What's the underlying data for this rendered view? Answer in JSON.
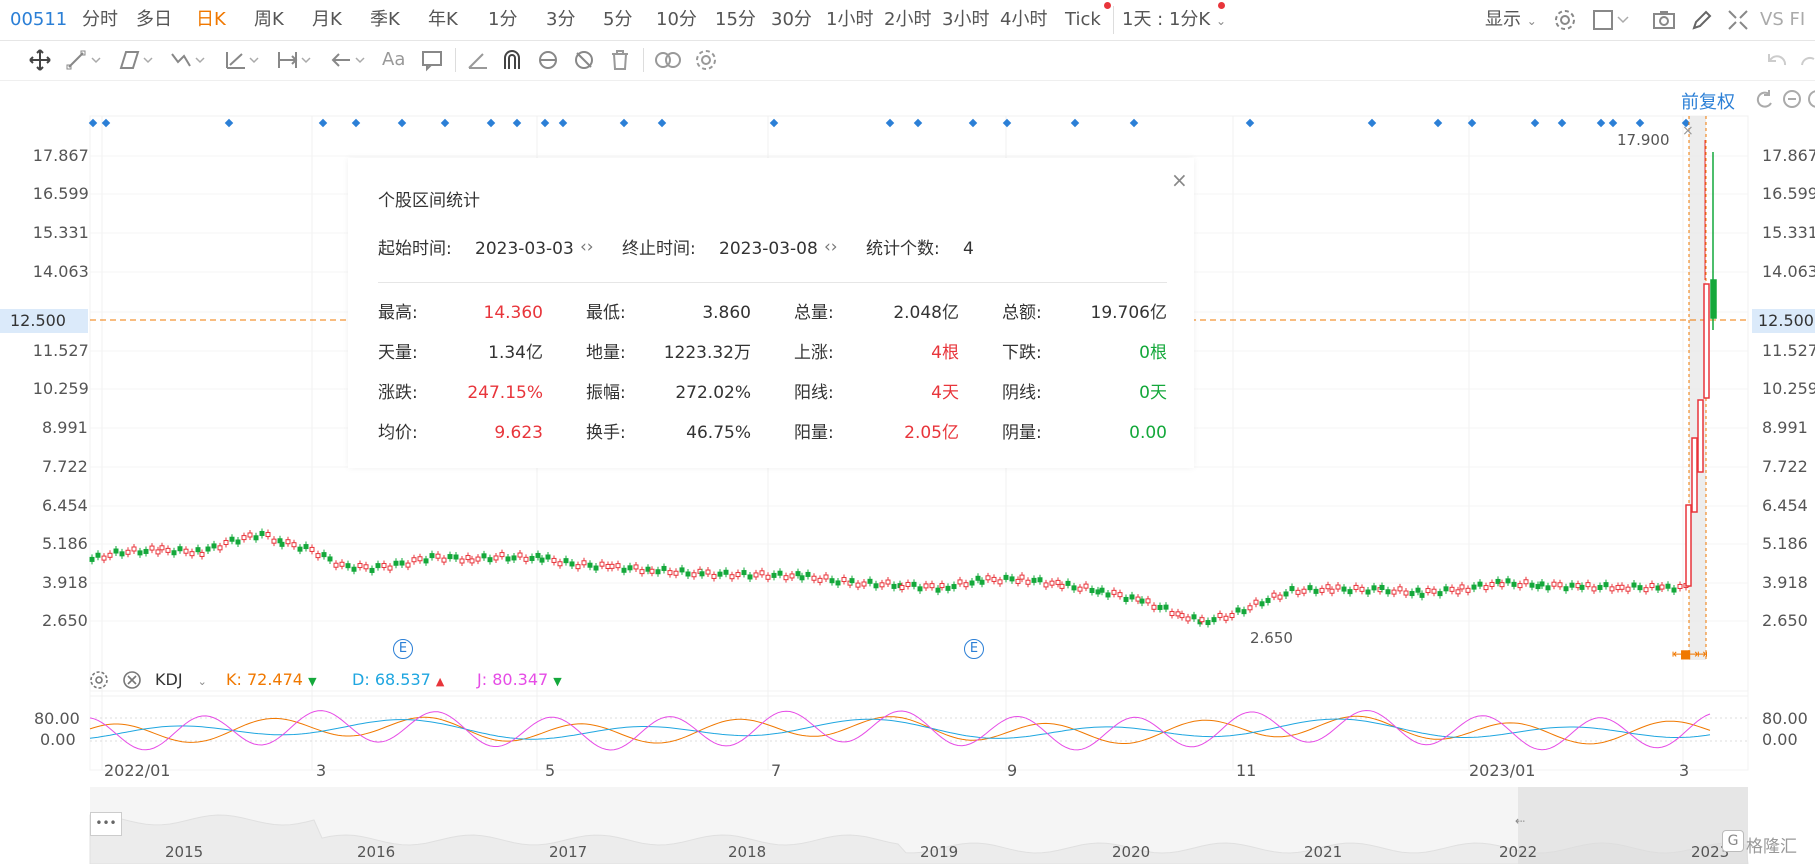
{
  "toolbar": {
    "code": "00511",
    "periods": [
      "分时",
      "多日",
      "日K",
      "周K",
      "月K",
      "季K",
      "年K",
      "1分",
      "3分",
      "5分",
      "10分",
      "15分",
      "30分",
      "1小时",
      "2小时",
      "3小时",
      "4小时",
      "Tick"
    ],
    "active_period": "日K",
    "multi_label": "1天 : 1分K",
    "display_label": "显示",
    "vs_label": "VS FI"
  },
  "drawing_tools": {
    "text_tool": "Aa"
  },
  "chart": {
    "adjust_label": "前复权",
    "y_ticks": [
      "17.867",
      "16.599",
      "15.331",
      "14.063",
      "12.500",
      "11.527",
      "10.259",
      "8.991",
      "7.722",
      "6.454",
      "5.186",
      "3.918",
      "2.650"
    ],
    "price_line": "12.500",
    "high_marker": "17.900",
    "low_marker": "2.650",
    "event_marker": "E",
    "x_ticks": [
      "2022/01",
      "3",
      "5",
      "7",
      "9",
      "11",
      "2023/01",
      "3"
    ]
  },
  "indicator": {
    "name": "KDJ",
    "k_label": "K:",
    "k_value": "72.474",
    "d_label": "D:",
    "d_value": "68.537",
    "j_label": "J:",
    "j_value": "80.347",
    "y_ticks": [
      "80.00",
      "0.00"
    ],
    "colors": {
      "k": "#f07800",
      "d": "#1fa6e0",
      "j": "#e64ce6"
    }
  },
  "navigator": {
    "years": [
      "2015",
      "2016",
      "2017",
      "2018",
      "2019",
      "2020",
      "2021",
      "2022",
      "2023"
    ],
    "menu": "•••"
  },
  "stats_popup": {
    "title": "个股区间统计",
    "start_label": "起始时间:",
    "start_value": "2023-03-03",
    "end_label": "终止时间:",
    "end_value": "2023-03-08",
    "count_label": "统计个数:",
    "count_value": "4",
    "rows": [
      [
        {
          "k": "最高:",
          "v": "14.360",
          "c": "red"
        },
        {
          "k": "最低:",
          "v": "3.860",
          "c": ""
        },
        {
          "k": "总量:",
          "v": "2.048亿",
          "c": ""
        },
        {
          "k": "总额:",
          "v": "19.706亿",
          "c": ""
        }
      ],
      [
        {
          "k": "天量:",
          "v": "1.34亿",
          "c": ""
        },
        {
          "k": "地量:",
          "v": "1223.32万",
          "c": ""
        },
        {
          "k": "上涨:",
          "v": "4根",
          "c": "red"
        },
        {
          "k": "下跌:",
          "v": "0根",
          "c": "green"
        }
      ],
      [
        {
          "k": "涨跌:",
          "v": "247.15%",
          "c": "red"
        },
        {
          "k": "振幅:",
          "v": "272.02%",
          "c": ""
        },
        {
          "k": "阳线:",
          "v": "4天",
          "c": "red"
        },
        {
          "k": "阴线:",
          "v": "0天",
          "c": "green"
        }
      ],
      [
        {
          "k": "均价:",
          "v": "9.623",
          "c": "red"
        },
        {
          "k": "换手:",
          "v": "46.75%",
          "c": ""
        },
        {
          "k": "阳量:",
          "v": "2.05亿",
          "c": "red"
        },
        {
          "k": "阴量:",
          "v": "0.00",
          "c": "green"
        }
      ]
    ]
  },
  "watermark": "格隆汇",
  "colors": {
    "up": "#e8353b",
    "down": "#14a83b",
    "accent": "#f07800",
    "blue": "#2b7fd6"
  }
}
